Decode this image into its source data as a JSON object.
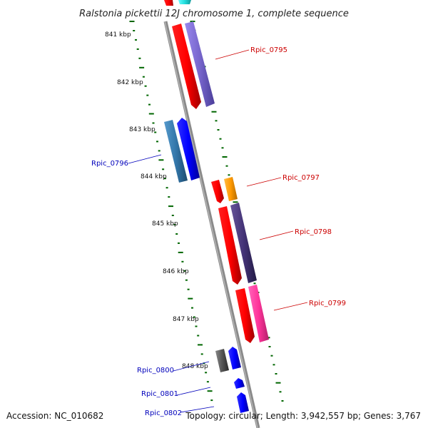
{
  "title": "Ralstonia pickettii 12J chromosome 1, complete sequence",
  "accession": "Accession: NC_010682",
  "summary": "Topology: circular; Length: 3,942,557 bp; Genes: 3,767",
  "ruler": {
    "unit": "kbp",
    "ticks": [
      "841 kbp",
      "842 kbp",
      "843 kbp",
      "844 kbp",
      "845 kbp",
      "846 kbp",
      "847 kbp",
      "848 kbp"
    ]
  },
  "genes": [
    {
      "name": "Rpic_0795",
      "strand": "forward",
      "color": "#ff0000"
    },
    {
      "name": "Rpic_0796",
      "strand": "reverse",
      "color": "#0000ff"
    },
    {
      "name": "Rpic_0797",
      "strand": "forward",
      "color": "#ff0000"
    },
    {
      "name": "Rpic_0798",
      "strand": "forward",
      "color": "#ff0000"
    },
    {
      "name": "Rpic_0799",
      "strand": "forward",
      "color": "#ff0000"
    },
    {
      "name": "Rpic_0800",
      "strand": "reverse",
      "color": "#0000ff"
    },
    {
      "name": "Rpic_0801",
      "strand": "reverse",
      "color": "#0000ff"
    },
    {
      "name": "Rpic_0802",
      "strand": "reverse",
      "color": "#0000ff"
    }
  ],
  "colors": {
    "backbone": "#888888",
    "forward_gene": "#ff0000",
    "reverse_gene": "#0000ff",
    "cog_purple": "#7766cc",
    "cog_steel": "#3377aa",
    "cog_orange": "#ff9900",
    "cog_darkslate": "#443377",
    "cog_pink": "#ff3399",
    "cog_gray": "#555555",
    "cog_cyan": "#22dddd",
    "gc_ticks": "#006600"
  }
}
